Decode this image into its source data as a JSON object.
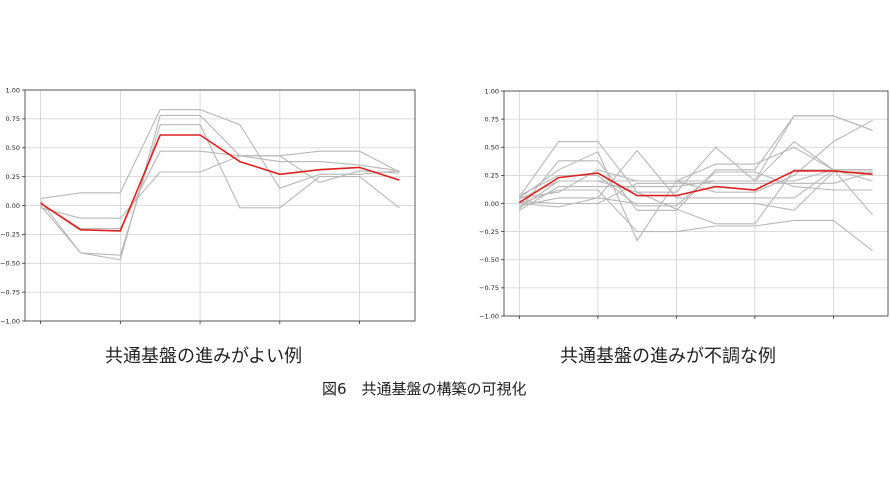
{
  "figure_caption": "図6　共通基盤の構築の可視化",
  "chart_data": [
    {
      "type": "line",
      "caption": "共通基盤の進みがよい例",
      "x": [
        0,
        1,
        2,
        3,
        4,
        5,
        6,
        7,
        8,
        9
      ],
      "xticks": [
        0,
        2,
        4,
        6,
        8
      ],
      "ylim": [
        -1.0,
        1.0
      ],
      "yticks": [
        "1.00",
        "0.75",
        "0.50",
        "0.25",
        "0.00",
        "−0.25",
        "−0.50",
        "−0.75",
        "−1.00"
      ],
      "grid": true,
      "colors": {
        "highlight": "#e02020",
        "background_series": "#b8b8b8"
      },
      "highlight": [
        0.02,
        -0.21,
        -0.22,
        0.61,
        0.61,
        0.38,
        0.27,
        0.31,
        0.33,
        0.22
      ],
      "background_series": [
        [
          0.06,
          0.11,
          0.11,
          0.83,
          0.83,
          0.7,
          0.15,
          0.27,
          0.27,
          0.3
        ],
        [
          0.04,
          -0.41,
          -0.47,
          0.78,
          0.78,
          0.43,
          0.43,
          0.47,
          0.47,
          0.29
        ],
        [
          0.0,
          -0.41,
          -0.43,
          0.7,
          0.7,
          -0.02,
          -0.02,
          0.25,
          0.25,
          -0.02
        ],
        [
          0.02,
          -0.2,
          -0.2,
          0.47,
          0.47,
          0.43,
          0.38,
          0.38,
          0.35,
          0.3
        ],
        [
          -0.02,
          -0.11,
          -0.11,
          0.29,
          0.29,
          0.43,
          0.43,
          0.2,
          0.3,
          0.28
        ]
      ]
    },
    {
      "type": "line",
      "caption": "共通基盤の進みが不調な例",
      "x": [
        0,
        1,
        2,
        3,
        4,
        5,
        6,
        7,
        8,
        9
      ],
      "xticks": [
        0,
        2,
        4,
        6,
        8
      ],
      "ylim": [
        -1.0,
        1.0
      ],
      "yticks": [
        "1.00",
        "0.75",
        "0.50",
        "0.25",
        "0.00",
        "−0.25",
        "−0.50",
        "−0.75",
        "−1.00"
      ],
      "grid": true,
      "colors": {
        "highlight": "#e02020",
        "background_series": "#b8b8b8"
      },
      "highlight": [
        0.01,
        0.23,
        0.27,
        0.07,
        0.07,
        0.15,
        0.12,
        0.29,
        0.29,
        0.26
      ],
      "background_series": [
        [
          0.06,
          0.55,
          0.55,
          0.1,
          0.1,
          0.5,
          0.2,
          0.55,
          0.3,
          -0.1
        ],
        [
          -0.05,
          0.38,
          0.38,
          -0.06,
          -0.06,
          0.3,
          0.3,
          0.78,
          0.78,
          0.65
        ],
        [
          0.05,
          0.3,
          0.46,
          -0.33,
          0.2,
          0.2,
          0.2,
          0.78,
          0.78,
          0.65
        ],
        [
          0.0,
          0.12,
          0.12,
          -0.25,
          -0.25,
          -0.2,
          -0.2,
          -0.15,
          -0.15,
          -0.42
        ],
        [
          0.04,
          0.2,
          0.2,
          0.2,
          0.2,
          0.1,
          0.1,
          0.25,
          0.55,
          0.74
        ],
        [
          -0.02,
          0.05,
          0.05,
          0.47,
          0.05,
          0.05,
          0.05,
          0.05,
          0.3,
          0.3
        ],
        [
          0.07,
          0.25,
          0.25,
          -0.02,
          -0.02,
          0.28,
          0.28,
          0.15,
          0.12,
          0.12
        ],
        [
          -0.06,
          0.15,
          0.15,
          0.15,
          0.15,
          0.2,
          0.2,
          0.2,
          0.3,
          0.3
        ],
        [
          0.02,
          0.0,
          0.0,
          0.18,
          0.18,
          0.18,
          0.18,
          0.18,
          0.18,
          0.28
        ],
        [
          -0.04,
          0.2,
          0.2,
          0.1,
          -0.05,
          -0.18,
          -0.18,
          0.3,
          0.3,
          0.2
        ],
        [
          0.05,
          0.1,
          0.3,
          0.2,
          0.2,
          0.35,
          0.35,
          0.5,
          0.3,
          0.3
        ],
        [
          0.0,
          -0.03,
          0.05,
          0.0,
          0.0,
          0.0,
          0.0,
          -0.06,
          0.28,
          0.28
        ]
      ]
    }
  ]
}
